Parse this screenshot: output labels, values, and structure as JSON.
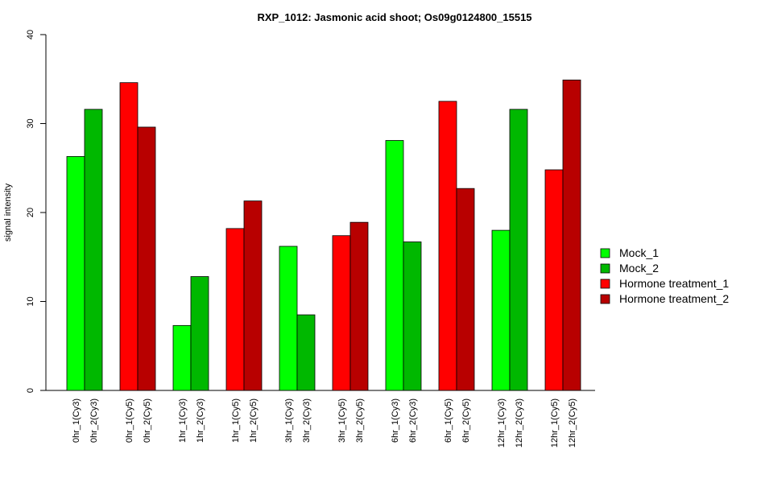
{
  "chart_data": {
    "type": "bar",
    "title": "RXP_1012: Jasmonic acid shoot; Os09g0124800_15515",
    "ylabel": "signal intensity",
    "xlabel": "",
    "ylim": [
      0,
      40
    ],
    "yticks": [
      0,
      10,
      20,
      30,
      40
    ],
    "grid": false,
    "legend_position": "right",
    "categories": [
      "0hr_1(Cy3)",
      "0hr_2(Cy3)",
      "0hr_1(Cy5)",
      "0hr_2(Cy5)",
      "1hr_1(Cy3)",
      "1hr_2(Cy3)",
      "1hr_1(Cy5)",
      "1hr_2(Cy5)",
      "3hr_1(Cy3)",
      "3hr_2(Cy3)",
      "3hr_1(Cy5)",
      "3hr_2(Cy5)",
      "6hr_1(Cy3)",
      "6hr_2(Cy3)",
      "6hr_1(Cy5)",
      "6hr_2(Cy5)",
      "12hr_1(Cy3)",
      "12hr_2(Cy3)",
      "12hr_1(Cy5)",
      "12hr_2(Cy5)"
    ],
    "values": [
      26.3,
      31.6,
      34.6,
      29.6,
      7.3,
      12.8,
      18.2,
      21.3,
      16.2,
      8.5,
      17.4,
      18.9,
      28.1,
      16.7,
      32.5,
      22.7,
      18.0,
      31.6,
      24.8,
      34.9
    ],
    "bar_series": [
      0,
      1,
      2,
      3,
      0,
      1,
      2,
      3,
      0,
      1,
      2,
      3,
      0,
      1,
      2,
      3,
      0,
      1,
      2,
      3
    ],
    "series": [
      {
        "name": "Mock_1",
        "color": "#00ff00"
      },
      {
        "name": "Mock_2",
        "color": "#00b800"
      },
      {
        "name": "Hormone treatment_1",
        "color": "#ff0000"
      },
      {
        "name": "Hormone treatment_2",
        "color": "#b80000"
      }
    ]
  }
}
